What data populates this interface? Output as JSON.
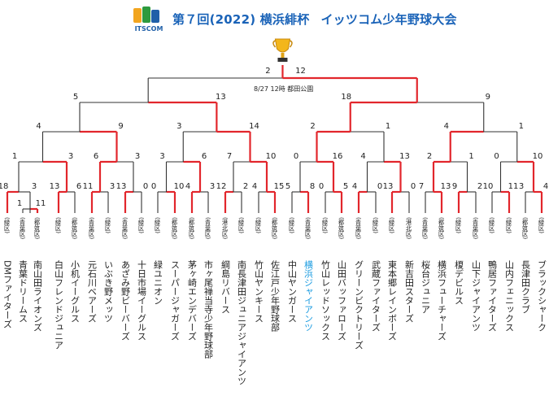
{
  "header": {
    "logo_text": "ITSCOM",
    "title_left": "第７回(2022) 横浜緋杯",
    "title_right": "イッツコム少年野球大会"
  },
  "colors": {
    "win": "#e2262c",
    "lose": "#333333",
    "title": "#1a63b8",
    "highlight_team": "#1a9be0"
  },
  "final_note": "8/27 12時 都田公園",
  "final_scores": [
    "2",
    "12"
  ],
  "teams": [
    {
      "name": "DMファイターズ",
      "area": "緑区"
    },
    {
      "name": "青葉ドリームス",
      "area": "青葉区"
    },
    {
      "name": "南山田ライオンズ",
      "area": "都筑区"
    },
    {
      "name": "白山フレンドジュニア",
      "area": "緑区"
    },
    {
      "name": "小机イーグルス",
      "area": "都筑区"
    },
    {
      "name": "元石川ベアーズ",
      "area": "青葉区"
    },
    {
      "name": "いぶき野メッツ",
      "area": "緑区"
    },
    {
      "name": "あざみ野ビーバーズ",
      "area": "青葉区"
    },
    {
      "name": "十日市場イーグルス",
      "area": "緑区"
    },
    {
      "name": "緑ユニオン",
      "area": "緑区"
    },
    {
      "name": "スーパージャガーズ",
      "area": "都筑区"
    },
    {
      "name": "茅ヶ崎エンデバーズ",
      "area": "都筑区"
    },
    {
      "name": "市ヶ尾禅当寺少年野球部",
      "area": "青葉区"
    },
    {
      "name": "綱島リバース",
      "area": "港北区"
    },
    {
      "name": "南長津田ジュニアジャイアンツ",
      "area": "緑区"
    },
    {
      "name": "竹山ヤンキース",
      "area": "緑区"
    },
    {
      "name": "佐江戸少年野球部",
      "area": "都筑区"
    },
    {
      "name": "中山ヤンガース",
      "area": "緑区"
    },
    {
      "name": "横浜ジャイアンツ",
      "area": "青葉区"
    },
    {
      "name": "竹山レッドソックス",
      "area": "緑区"
    },
    {
      "name": "山田バッファローズ",
      "area": "都筑区"
    },
    {
      "name": "グリーンビクトリーズ",
      "area": "青葉区"
    },
    {
      "name": "武蔵ファイターズ",
      "area": "緑区"
    },
    {
      "name": "東本郷レインボーズ",
      "area": "緑区"
    },
    {
      "name": "新吉田スターズ",
      "area": "港北区"
    },
    {
      "name": "桜台ジュニア",
      "area": "青葉区"
    },
    {
      "name": "横浜フューチャーズ",
      "area": "都筑区"
    },
    {
      "name": "榎デビルス",
      "area": "緑区"
    },
    {
      "name": "山下ジャイアンツ",
      "area": "青葉区"
    },
    {
      "name": "鴨居ファイターズ",
      "area": "緑区"
    },
    {
      "name": "山内フェニックス",
      "area": "緑区"
    },
    {
      "name": "長津田クラブ",
      "area": "都筑区"
    },
    {
      "name": "ブラックシャーク",
      "area": "緑区"
    }
  ],
  "round1_scores": [
    "18",
    "3",
    "13",
    "6",
    "11",
    "3",
    "13",
    "0",
    "0",
    "10",
    "4",
    "3",
    "12",
    "2",
    "4",
    "15",
    "5",
    "8",
    "0",
    "5",
    "4",
    "0",
    "13",
    "0",
    "7",
    "13",
    "9",
    "2",
    "10",
    "11",
    "3",
    "4"
  ],
  "prelim_scores": [
    "1",
    "11"
  ],
  "round2_scores": [
    "1",
    "3",
    "6",
    "3",
    "3",
    "6",
    "7",
    "10",
    "0",
    "16",
    "4",
    "13",
    "2",
    "1",
    "0",
    "10"
  ],
  "round3_scores": [
    "4",
    "9",
    "3",
    "14",
    "2",
    "1",
    "4",
    "1"
  ],
  "round4_scores": [
    "5",
    "13",
    "18",
    "9"
  ]
}
